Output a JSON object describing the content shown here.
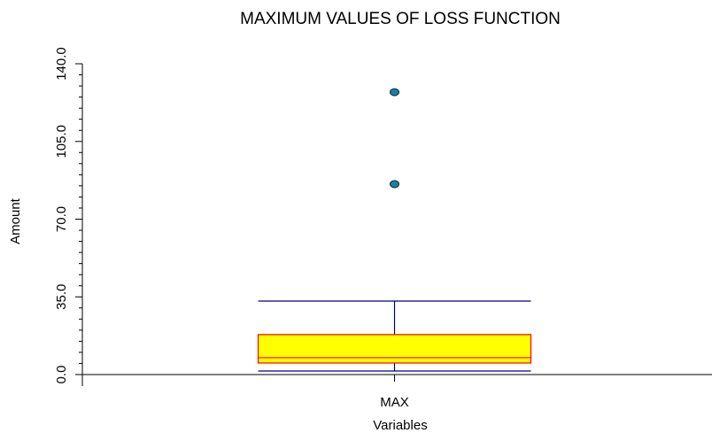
{
  "chart_data": {
    "type": "box",
    "title": "MAXIMUM VALUES OF LOSS FUNCTION",
    "xlabel": "Variables",
    "ylabel": "Amount",
    "categories": [
      "MAX"
    ],
    "series": [
      {
        "whisker_low": 1.6,
        "q1": 5.2,
        "median": 7.6,
        "q3": 18.0,
        "whisker_high": 33.1,
        "outliers": [
          85.8,
          127.2
        ],
        "color": "#ffff00",
        "edge_color": "#ff0000",
        "whisker_color": "#000080",
        "outlier_color": "#1a7fa0"
      }
    ],
    "ylim": [
      0,
      140
    ],
    "yticks": [
      {
        "value": 0,
        "label": "0.0"
      },
      {
        "value": 35,
        "label": "35.0"
      },
      {
        "value": 70,
        "label": "70.0"
      },
      {
        "value": 105,
        "label": "105.0"
      },
      {
        "value": 140,
        "label": "140.0"
      }
    ],
    "y_minor_ticks": [
      5,
      10,
      15,
      20,
      25,
      30,
      40,
      45,
      50,
      55,
      60,
      65,
      75,
      80,
      85,
      90,
      95,
      100,
      110,
      115,
      120,
      125,
      130,
      135
    ]
  }
}
